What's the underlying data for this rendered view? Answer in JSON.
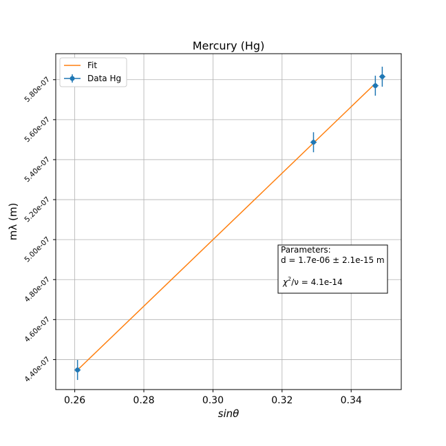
{
  "chart_data": {
    "type": "scatter",
    "title": "Mercury (Hg)",
    "xlabel": "sinθ",
    "ylabel": "mλ (m)",
    "xlim": [
      0.2545,
      0.3545
    ],
    "ylim": [
      4.25e-07,
      5.93e-07
    ],
    "xticks": [
      0.26,
      0.28,
      0.3,
      0.32,
      0.34
    ],
    "xtick_labels": [
      "0.26",
      "0.28",
      "0.30",
      "0.32",
      "0.34"
    ],
    "yticks": [
      4.4e-07,
      4.6e-07,
      4.8e-07,
      5e-07,
      5.2e-07,
      5.4e-07,
      5.6e-07,
      5.8e-07
    ],
    "ytick_labels": [
      "4.40e-07",
      "4.60e-07",
      "4.80e-07",
      "5.00e-07",
      "5.20e-07",
      "5.40e-07",
      "5.60e-07",
      "5.80e-07"
    ],
    "grid": true,
    "legend_position": "top-left",
    "series": [
      {
        "name": "Fit",
        "kind": "line",
        "color": "#ff7f0e",
        "x": [
          0.2608,
          0.347
        ],
        "y": [
          4.348e-07,
          5.781e-07
        ]
      },
      {
        "name": "Data Hg",
        "kind": "errorbar",
        "color": "#1f77b4",
        "x": [
          0.2608,
          0.3291,
          0.347,
          0.349
        ],
        "y": [
          4.348e-07,
          5.487e-07,
          5.77e-07,
          5.815e-07
        ],
        "xerr": [
          0.0009,
          0.0009,
          0.0009,
          0.0009
        ],
        "yerr": [
          5e-09,
          5e-09,
          5e-09,
          5e-09
        ]
      }
    ],
    "annotation": {
      "line1": "Parameters:",
      "line2": "d = 1.7e-06 ± 2.1e-15 m",
      "line3_symbol": "χ",
      "line3_sup": "2",
      "line3_rest": "/ν = 4.1e-14"
    }
  }
}
